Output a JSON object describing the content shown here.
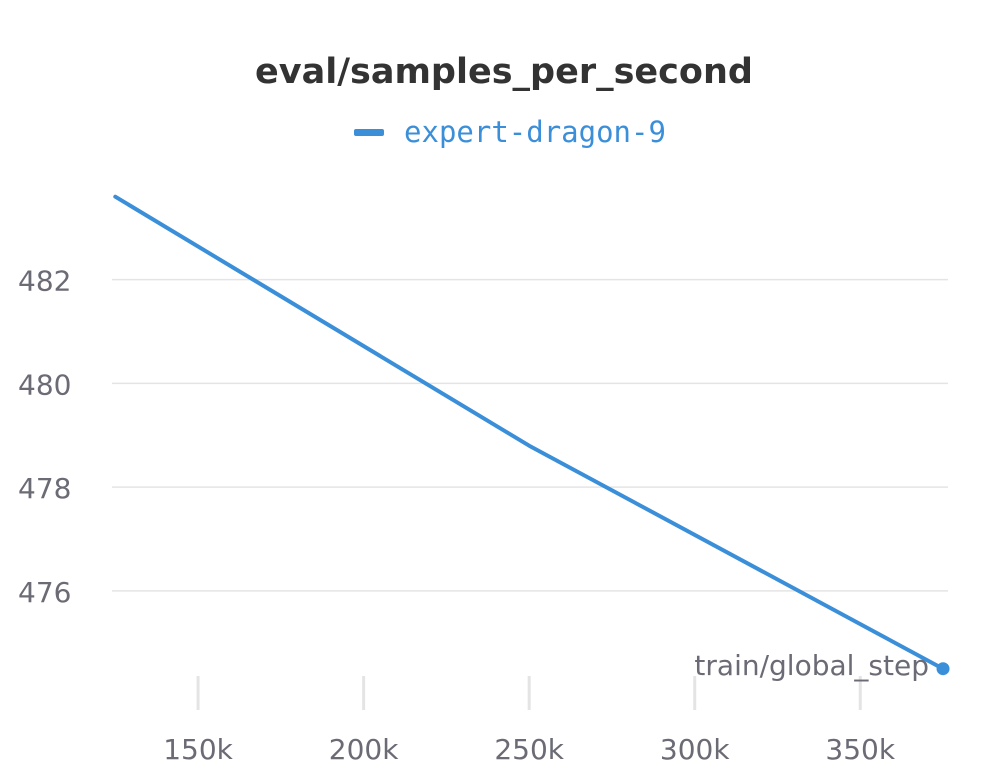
{
  "chart_data": {
    "type": "line",
    "title": "eval/samples_per_second",
    "xlabel": "train/global_step",
    "ylabel": "",
    "x_ticks": [
      150000,
      200000,
      250000,
      300000,
      350000
    ],
    "x_tick_labels": [
      "150k",
      "200k",
      "250k",
      "300k",
      "350k"
    ],
    "y_ticks": [
      476,
      478,
      480,
      482
    ],
    "y_tick_labels": [
      "476",
      "478",
      "480",
      "482"
    ],
    "xlim": [
      124000,
      376500
    ],
    "ylim": [
      473.8,
      484.5
    ],
    "grid": true,
    "legend": "top-center",
    "series": [
      {
        "name": "expert-dragon-9",
        "color": "#3b8fd9",
        "x": [
          125000,
          250000,
          375000
        ],
        "y": [
          483.6,
          478.8,
          474.5
        ]
      }
    ]
  }
}
